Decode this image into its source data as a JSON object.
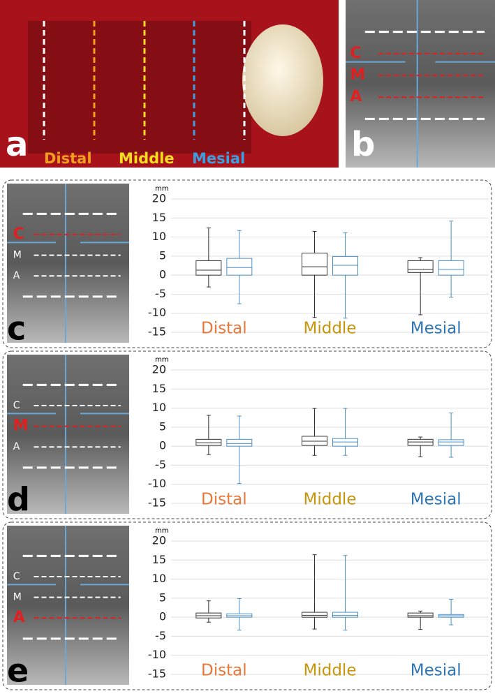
{
  "figure": {
    "panel_a": {
      "letter": "a",
      "labels": [
        "Distal",
        "Middle",
        "Mesial"
      ],
      "label_colors": [
        "#f0a020",
        "#f2e020",
        "#3aa0e0"
      ]
    },
    "panel_b": {
      "letter": "b",
      "levels": [
        "C",
        "M",
        "A"
      ],
      "highlight": [
        0,
        1,
        2
      ]
    },
    "panels": [
      {
        "letter": "c",
        "levels": [
          "C",
          "M",
          "A"
        ],
        "highlight": [
          0
        ]
      },
      {
        "letter": "d",
        "levels": [
          "C",
          "M",
          "A"
        ],
        "highlight": [
          1
        ]
      },
      {
        "letter": "e",
        "levels": [
          "C",
          "M",
          "A"
        ],
        "highlight": [
          2
        ]
      }
    ]
  },
  "chart_data": [
    {
      "type": "box",
      "y_label": "mm",
      "categories": [
        "Distal",
        "Middle",
        "Mesial"
      ],
      "category_colors": [
        "#e8773a",
        "#c8960c",
        "#2e75b6"
      ],
      "series": [
        {
          "color": "#333333",
          "values": [
            {
              "min": -3.1,
              "q1": 0,
              "median": 1.3,
              "q3": 3.8,
              "max": 12.4
            },
            {
              "min": -11.1,
              "q1": 0,
              "median": 2.2,
              "q3": 5.8,
              "max": 11.5
            },
            {
              "min": -10.4,
              "q1": 0.7,
              "median": 1.5,
              "q3": 3.8,
              "max": 4.6
            }
          ]
        },
        {
          "color": "#4a90c8",
          "values": [
            {
              "min": -7.5,
              "q1": 0,
              "median": 2.0,
              "q3": 4.4,
              "max": 11.7
            },
            {
              "min": -11.3,
              "q1": 0,
              "median": 2.6,
              "q3": 4.9,
              "max": 11.1
            },
            {
              "min": -5.8,
              "q1": 0,
              "median": 1.5,
              "q3": 3.8,
              "max": 14.2
            }
          ]
        }
      ],
      "ylim": [
        -15,
        20
      ],
      "yticks": [
        -15,
        -10,
        -5,
        0,
        5,
        10,
        15,
        20
      ],
      "grid": true
    },
    {
      "type": "box",
      "y_label": "mm",
      "categories": [
        "Distal",
        "Middle",
        "Mesial"
      ],
      "category_colors": [
        "#e8773a",
        "#c8960c",
        "#2e75b6"
      ],
      "series": [
        {
          "color": "#333333",
          "values": [
            {
              "min": -2.2,
              "q1": 0.2,
              "median": 0.9,
              "q3": 1.8,
              "max": 8.1
            },
            {
              "min": -2.4,
              "q1": 0.2,
              "median": 1.3,
              "q3": 2.6,
              "max": 9.9
            },
            {
              "min": -2.8,
              "q1": 0.2,
              "median": 1.1,
              "q3": 1.8,
              "max": 2.4
            }
          ]
        },
        {
          "color": "#4a90c8",
          "values": [
            {
              "min": -9.8,
              "q1": 0,
              "median": 0.7,
              "q3": 1.8,
              "max": 7.9
            },
            {
              "min": -2.4,
              "q1": 0,
              "median": 1.1,
              "q3": 2.0,
              "max": 9.9
            },
            {
              "min": -2.9,
              "q1": 0.2,
              "median": 1.1,
              "q3": 1.7,
              "max": 8.7
            }
          ]
        }
      ],
      "ylim": [
        -15,
        20
      ],
      "yticks": [
        -15,
        -10,
        -5,
        0,
        5,
        10,
        15,
        20
      ],
      "grid": true
    },
    {
      "type": "box",
      "y_label": "mm",
      "categories": [
        "Distal",
        "Middle",
        "Mesial"
      ],
      "category_colors": [
        "#e8773a",
        "#c8960c",
        "#2e75b6"
      ],
      "series": [
        {
          "color": "#333333",
          "values": [
            {
              "min": -1.3,
              "q1": -0.2,
              "median": 0.4,
              "q3": 1.1,
              "max": 4.3
            },
            {
              "min": -3.1,
              "q1": 0,
              "median": 0.5,
              "q3": 1.3,
              "max": 16.4
            },
            {
              "min": -3.2,
              "q1": 0,
              "median": 0.4,
              "q3": 1.1,
              "max": 1.6
            }
          ]
        },
        {
          "color": "#4a90c8",
          "values": [
            {
              "min": -3.4,
              "q1": 0,
              "median": 0.4,
              "q3": 0.9,
              "max": 4.9
            },
            {
              "min": -3.4,
              "q1": 0,
              "median": 0.5,
              "q3": 1.3,
              "max": 16.2
            },
            {
              "min": -2.0,
              "q1": 0,
              "median": 0.4,
              "q3": 0.7,
              "max": 4.7
            }
          ]
        }
      ],
      "ylim": [
        -15,
        20
      ],
      "yticks": [
        -15,
        -10,
        -5,
        0,
        5,
        10,
        15,
        20
      ],
      "grid": true
    }
  ]
}
